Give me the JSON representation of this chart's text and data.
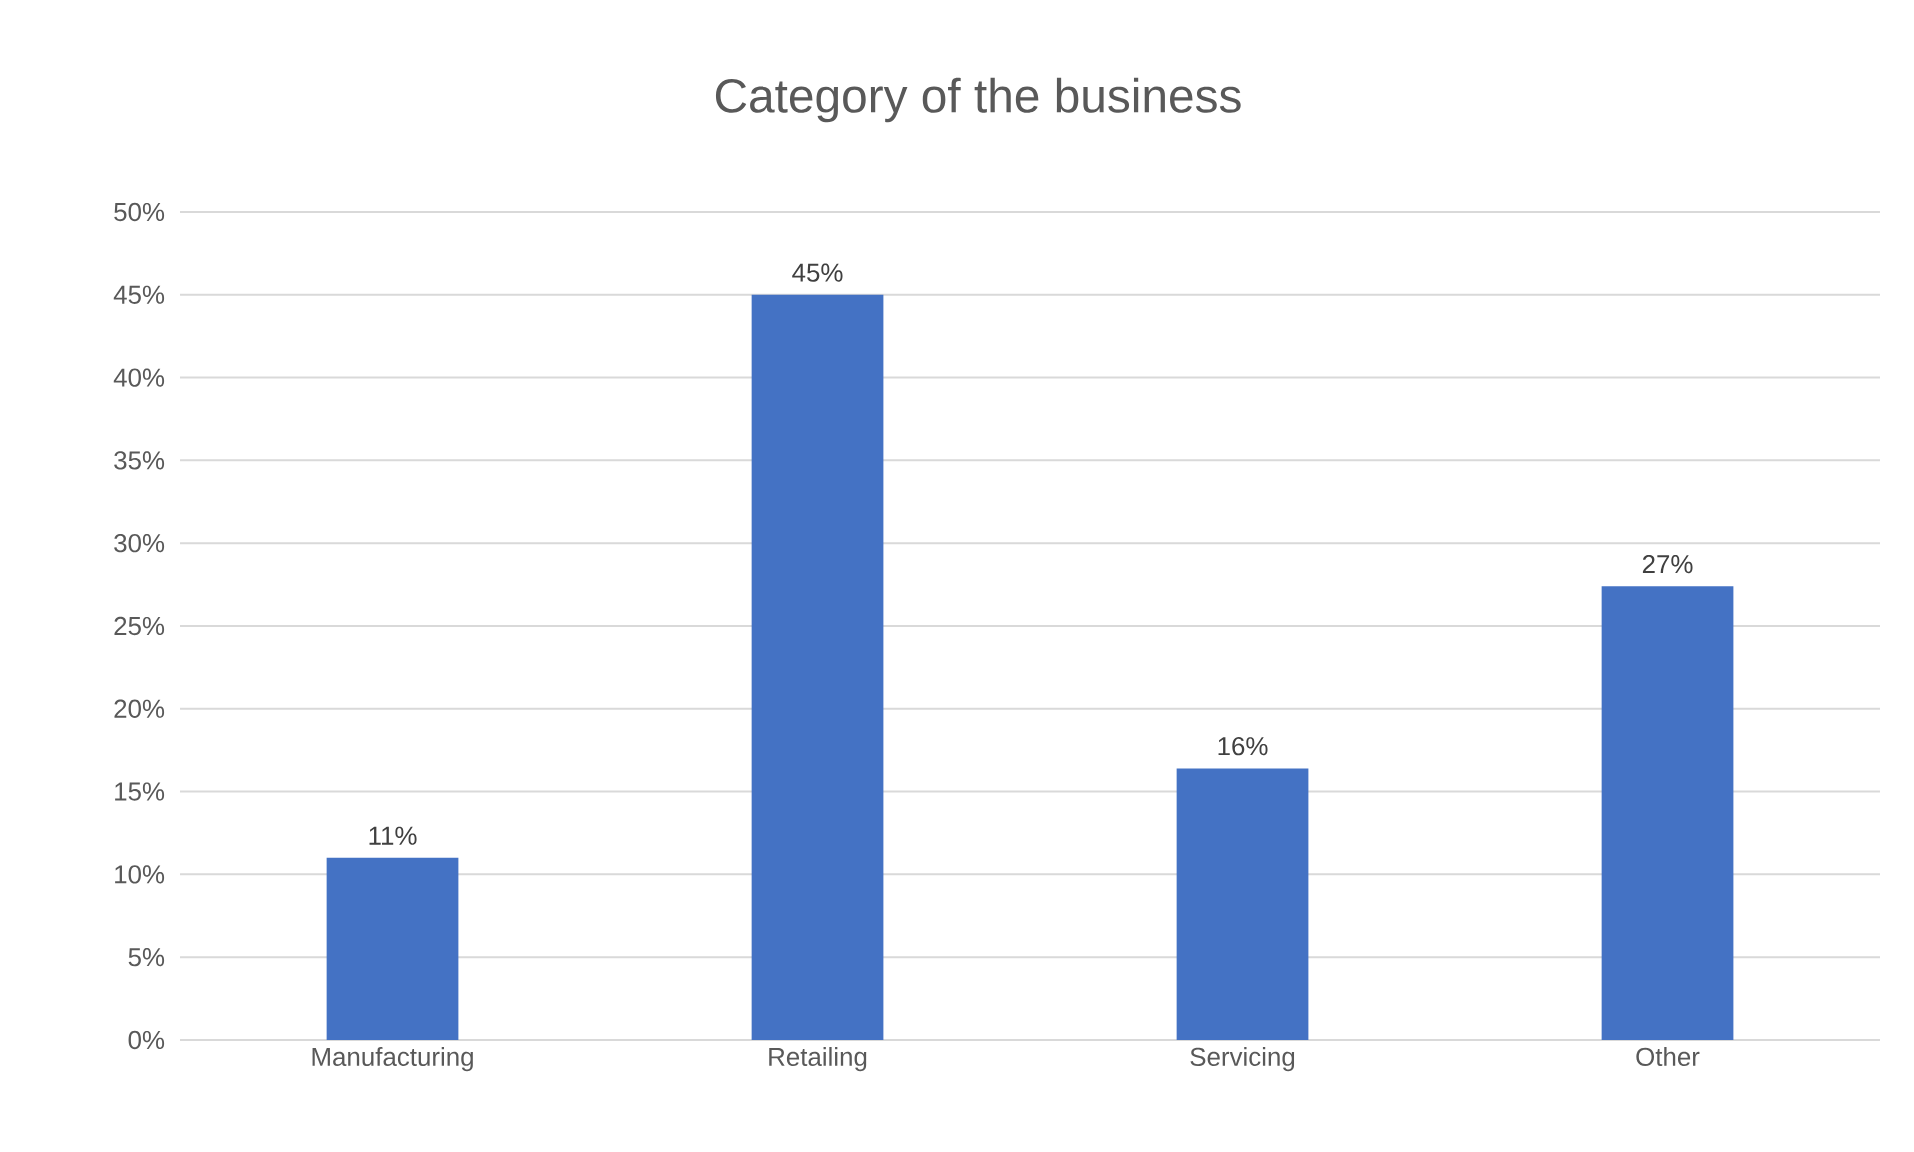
{
  "chart_data": {
    "type": "bar",
    "title": "Category of the business",
    "categories": [
      "Manufacturing",
      "Retailing",
      "Servicing",
      "Other"
    ],
    "values": [
      11,
      45,
      16.4,
      27.4
    ],
    "value_labels": [
      "11%",
      "45%",
      "16%",
      "27%"
    ],
    "color": "#4472c4",
    "ylim": [
      0,
      50
    ],
    "yticks": [
      {
        "value": 0,
        "label": "0%"
      },
      {
        "value": 5,
        "label": "5%"
      },
      {
        "value": 10,
        "label": "10%"
      },
      {
        "value": 15,
        "label": "15%"
      },
      {
        "value": 20,
        "label": "20%"
      },
      {
        "value": 25,
        "label": "25%"
      },
      {
        "value": 30,
        "label": "30%"
      },
      {
        "value": 35,
        "label": "35%"
      },
      {
        "value": 40,
        "label": "40%"
      },
      {
        "value": 45,
        "label": "45%"
      },
      {
        "value": 50,
        "label": "50%"
      }
    ],
    "grid": "y"
  }
}
